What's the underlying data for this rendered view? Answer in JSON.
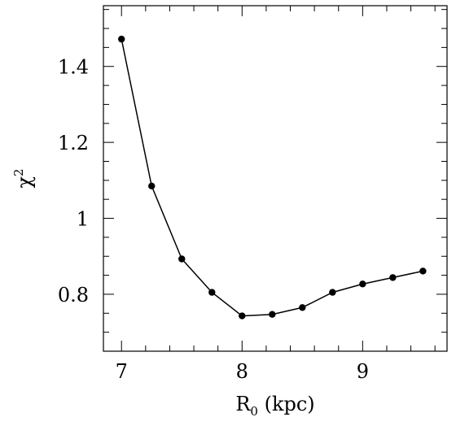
{
  "chart_data": {
    "type": "line",
    "title": "",
    "xlabel": "R",
    "xlabel_subscript": "0",
    "xlabel_suffix": " (kpc)",
    "ylabel": "χ",
    "ylabel_superscript": "2",
    "xlim": [
      6.85,
      9.7
    ],
    "ylim": [
      0.65,
      1.56
    ],
    "x_ticks_major": [
      7,
      8,
      9
    ],
    "x_tick_labels": [
      "7",
      "8",
      "9"
    ],
    "x_ticks_minor_step": 0.2,
    "y_ticks_major": [
      0.8,
      1.0,
      1.2,
      1.4
    ],
    "y_tick_labels": [
      "0.8",
      "1",
      "1.2",
      "1.4"
    ],
    "y_ticks_minor_step": 0.05,
    "grid": false,
    "legend": "none",
    "series": [
      {
        "x": [
          7.0,
          7.25,
          7.5,
          7.75,
          8.0,
          8.25,
          8.5,
          8.75,
          9.0,
          9.25,
          9.5
        ],
        "values": [
          1.472,
          1.085,
          0.893,
          0.805,
          0.743,
          0.747,
          0.765,
          0.805,
          0.827,
          0.844,
          0.861
        ],
        "color": "#000000",
        "marker": "circle"
      }
    ]
  }
}
